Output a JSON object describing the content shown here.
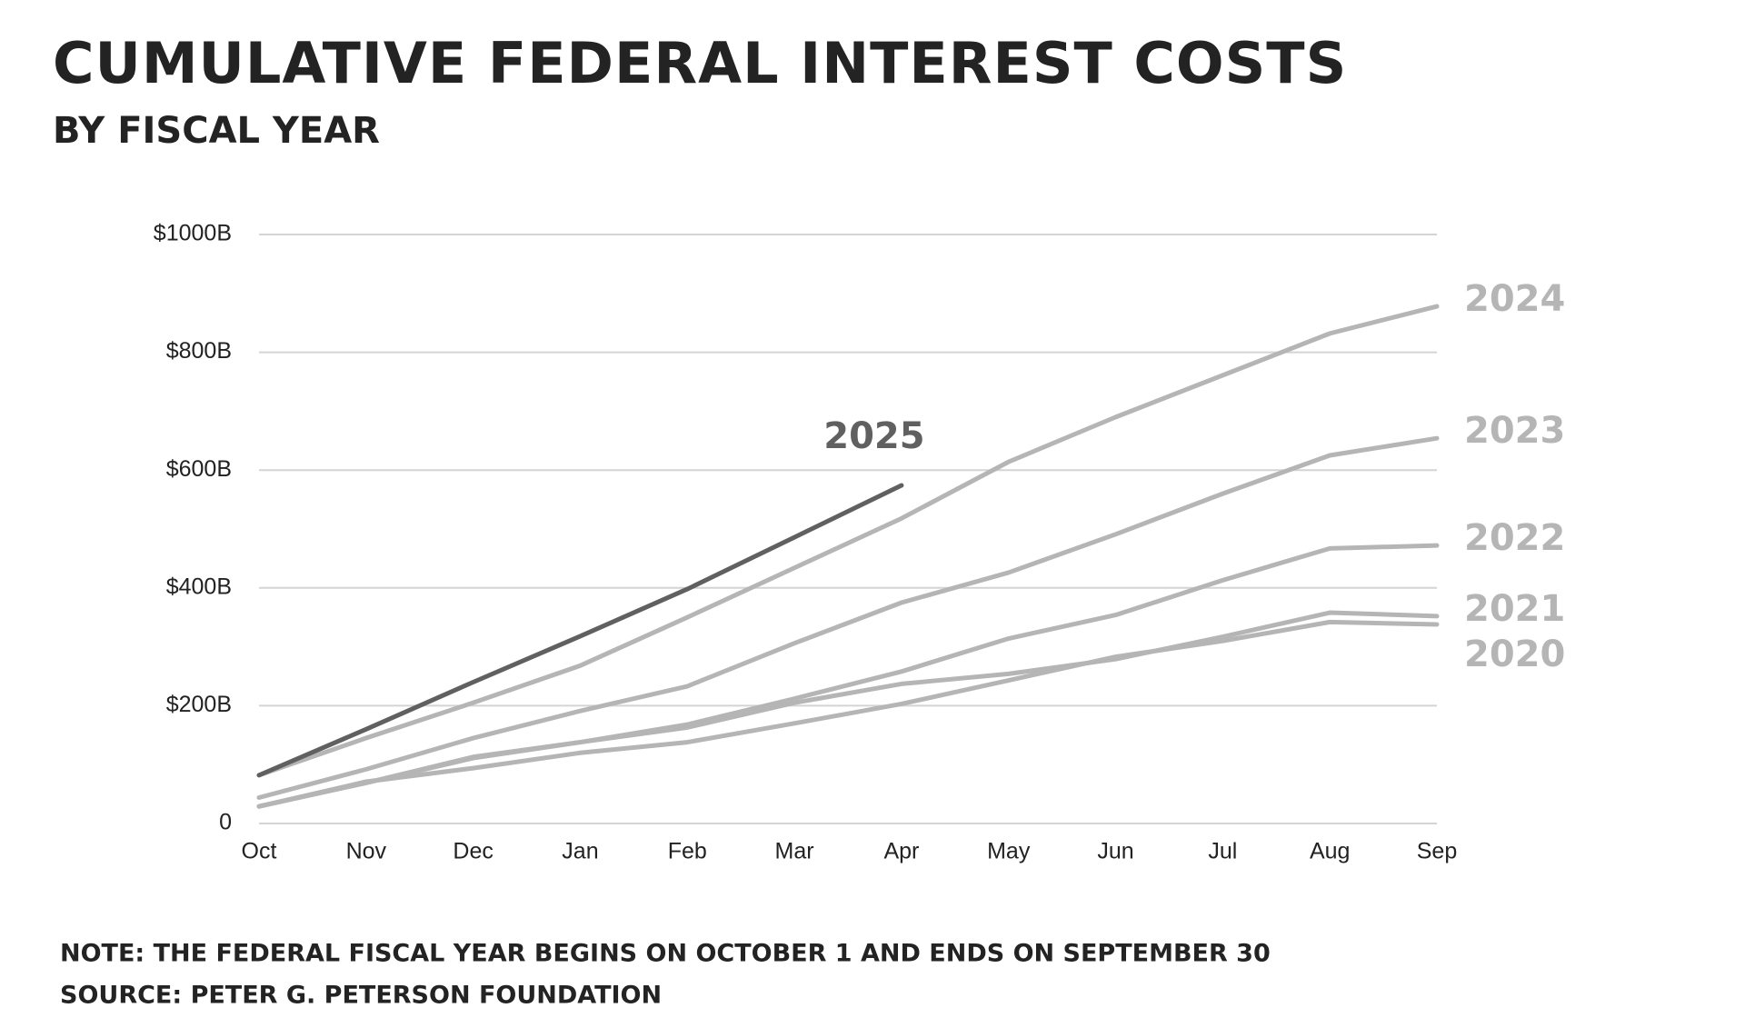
{
  "chart_data": {
    "type": "line",
    "title": "CUMULATIVE FEDERAL INTEREST COSTS",
    "subtitle": "BY FISCAL YEAR",
    "notes": [
      "NOTE: THE FEDERAL FISCAL YEAR BEGINS ON OCTOBER 1 AND ENDS ON SEPTEMBER 30",
      "SOURCE: PETER G. PETERSON FOUNDATION"
    ],
    "categories": [
      "Oct",
      "Nov",
      "Dec",
      "Jan",
      "Feb",
      "Mar",
      "Apr",
      "May",
      "Jun",
      "Jul",
      "Aug",
      "Sep"
    ],
    "ylim": [
      0,
      1000
    ],
    "yticks": [
      0,
      {
        "value": 200,
        "label": "$200B"
      },
      {
        "value": 400,
        "label": "$400B"
      },
      {
        "value": 600,
        "label": "$600B"
      },
      {
        "value": 800,
        "label": "$800B"
      },
      {
        "value": 1000,
        "label": "$1000B"
      }
    ],
    "grid": true,
    "series": [
      {
        "name": "2020",
        "color": "#b5b5b5",
        "values": [
          29,
          71,
          94,
          120,
          138,
          170,
          203,
          243,
          283,
          310,
          342,
          338
        ]
      },
      {
        "name": "2021",
        "color": "#b5b5b5",
        "values": [
          29,
          69,
          111,
          138,
          163,
          205,
          237,
          254,
          279,
          317,
          358,
          352
        ]
      },
      {
        "name": "2022",
        "color": "#b5b5b5",
        "values": [
          29,
          69,
          113,
          138,
          168,
          212,
          258,
          314,
          354,
          413,
          467,
          472
        ]
      },
      {
        "name": "2023",
        "color": "#b5b5b5",
        "values": [
          44,
          92,
          145,
          191,
          233,
          306,
          375,
          426,
          491,
          560,
          625,
          654
        ]
      },
      {
        "name": "2024",
        "color": "#b5b5b5",
        "values": [
          82,
          145,
          205,
          268,
          350,
          434,
          518,
          614,
          690,
          761,
          832,
          878
        ]
      },
      {
        "name": "2025",
        "color": "#606060",
        "values": [
          82,
          160,
          240,
          318,
          398,
          486,
          574,
          null,
          null,
          null,
          null,
          null
        ]
      }
    ]
  }
}
